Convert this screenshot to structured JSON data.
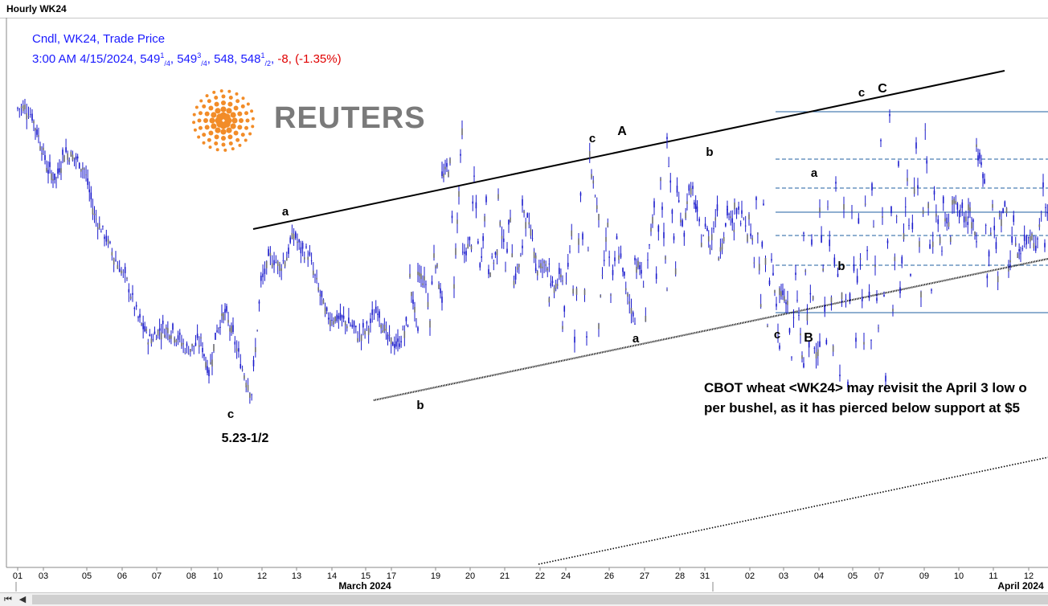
{
  "window": {
    "title": "Hourly WK24"
  },
  "legend": {
    "line1": "Cndl, WK24, Trade Price",
    "timestamp": "3:00 AM 4/15/2024,",
    "open_int": "549",
    "open_frac_num": "1",
    "open_frac_den": "/4",
    "high_int": "549",
    "high_frac_num": "3",
    "high_frac_den": "/4",
    "low": "548,",
    "close_int": "548",
    "close_frac_num": "1",
    "close_frac_den": "/2",
    "change": "-8,",
    "change_pct": "(-1.35%)"
  },
  "logo": {
    "text": "REUTERS",
    "color": "#f28c28"
  },
  "annotation": {
    "line1": "CBOT wheat <WK24> may revisit the April 3 low o",
    "line2": "per bushel, as it has pierced below support at $5"
  },
  "colors": {
    "candle": "#1a1acc",
    "candle_body": "#6e6e6e",
    "fib": "#1f5fa0",
    "trend": "#000000"
  },
  "chart_data": {
    "type": "candlestick",
    "title": "Hourly WK24",
    "series": [
      {
        "name": "Cndl, WK24, Trade Price",
        "approx_close_path": [
          [
            "02-01",
            560.5
          ],
          [
            "02-01",
            560.75
          ],
          [
            "02-02",
            559.5
          ],
          [
            "02-02",
            556.25
          ],
          [
            "02-02",
            552.5
          ],
          [
            "02-02",
            551.5
          ],
          [
            "02-05",
            555.0
          ],
          [
            "02-05",
            554.25
          ],
          [
            "02-05",
            552.75
          ],
          [
            "02-05",
            546.75
          ],
          [
            "02-06",
            544.25
          ],
          [
            "02-06",
            541.0
          ],
          [
            "02-06",
            538.25
          ],
          [
            "02-07",
            533.5
          ],
          [
            "02-07",
            530.75
          ],
          [
            "02-07",
            532.25
          ],
          [
            "02-08",
            532.0
          ],
          [
            "02-08",
            529.5
          ],
          [
            "02-09",
            530.5
          ],
          [
            "02-09",
            526.5
          ],
          [
            "02-09",
            532.25
          ],
          [
            "02-09",
            534.25
          ],
          [
            "02-12",
            531.25
          ],
          [
            "02-12",
            527.0
          ],
          [
            "02-12",
            524.0
          ],
          [
            "02-12",
            538.0
          ],
          [
            "02-12",
            541.5
          ],
          [
            "02-13",
            540.25
          ],
          [
            "02-13",
            541.5
          ],
          [
            "02-13",
            544.5
          ],
          [
            "02-13",
            542.25
          ],
          [
            "02-13",
            542.0
          ],
          [
            "02-14",
            538.75
          ],
          [
            "02-14",
            533.75
          ],
          [
            "02-14",
            533.5
          ],
          [
            "02-15",
            532.75
          ],
          [
            "02-15",
            531.25
          ],
          [
            "02-15",
            532.5
          ],
          [
            "02-16",
            534.75
          ],
          [
            "02-16",
            530.75
          ],
          [
            "02-16",
            530.0
          ],
          [
            "02-16",
            533.0
          ],
          [
            "02-20",
            531.25
          ],
          [
            "02-20",
            533.25
          ],
          [
            "02-20",
            536.0
          ],
          [
            "02-21",
            538.5
          ],
          [
            "02-21",
            541.5
          ],
          [
            "02-21",
            543.5
          ],
          [
            "02-21",
            539.75
          ],
          [
            "02-22",
            539.75
          ],
          [
            "02-22",
            542.0
          ],
          [
            "02-22",
            540.5
          ],
          [
            "02-22",
            538.25
          ],
          [
            "02-23",
            542.0
          ],
          [
            "02-23",
            542.0
          ],
          [
            "02-23",
            540.75
          ],
          [
            "02-26",
            539.0
          ],
          [
            "02-26",
            544.75
          ],
          [
            "02-26",
            550.0
          ],
          [
            "02-26",
            554.25
          ],
          [
            "02-27",
            546.25
          ],
          [
            "02-27",
            546.0
          ],
          [
            "02-27",
            543.25
          ],
          [
            "02-27",
            537.0
          ],
          [
            "02-28",
            533.5
          ],
          [
            "02-28",
            534.5
          ],
          [
            "02-28",
            538.0
          ],
          [
            "02-29",
            537.75
          ],
          [
            "02-29",
            540.25
          ],
          [
            "02-29",
            544.5
          ],
          [
            "03-01",
            549.75
          ],
          [
            "03-01",
            544.0
          ],
          [
            "03-01",
            542.75
          ],
          [
            "03-01",
            541.75
          ],
          [
            "03-04",
            546.75
          ],
          [
            "03-04",
            544.5
          ],
          [
            "03-04",
            546.5
          ],
          [
            "03-04",
            545.0
          ],
          [
            "03-04",
            541.5
          ],
          [
            "03-04",
            535.75
          ],
          [
            "03-05",
            532.75
          ],
          [
            "03-05",
            529.25
          ],
          [
            "03-05",
            528.0
          ],
          [
            "03-06",
            526.5
          ],
          [
            "03-06",
            529.25
          ],
          [
            "03-06",
            529.75
          ],
          [
            "03-07",
            530.25
          ],
          [
            "03-07",
            531.0
          ],
          [
            "03-07",
            530.0
          ],
          [
            "03-08",
            526.5
          ],
          [
            "03-08",
            524.5
          ],
          [
            "03-08",
            531.0
          ],
          [
            "03-11",
            530.75
          ],
          [
            "03-11",
            531.0
          ],
          [
            "03-11",
            532.0
          ],
          [
            "03-11",
            526.0
          ],
          [
            "03-11",
            534.75
          ],
          [
            "03-12",
            536.75
          ],
          [
            "03-12",
            539.0
          ],
          [
            "03-12",
            537.75
          ],
          [
            "03-12",
            537.25
          ],
          [
            "03-13",
            541.5
          ],
          [
            "03-13",
            544.25
          ],
          [
            "03-13",
            546.5
          ],
          [
            "03-13",
            545.5
          ],
          [
            "03-14",
            543.75
          ],
          [
            "03-14",
            539.25
          ],
          [
            "03-14",
            539.5
          ],
          [
            "03-15",
            540.0
          ],
          [
            "03-15",
            542.0
          ],
          [
            "03-15",
            543.75
          ],
          [
            "03-15",
            543.0
          ],
          [
            "03-18",
            542.75
          ],
          [
            "03-18",
            540.25
          ],
          [
            "03-18",
            541.25
          ],
          [
            "03-19",
            538.75
          ],
          [
            "03-19",
            539.5
          ],
          [
            "03-19",
            538.0
          ],
          [
            "03-19",
            542.25
          ],
          [
            "03-19",
            551.5
          ],
          [
            "03-20",
            553.5
          ],
          [
            "03-20",
            557.5
          ],
          [
            "03-20",
            551.5
          ],
          [
            "03-21",
            548.75
          ],
          [
            "03-21",
            548.75
          ],
          [
            "03-21",
            547.0
          ],
          [
            "03-22",
            548.25
          ],
          [
            "03-22",
            539.75
          ],
          [
            "03-22",
            536.75
          ],
          [
            "03-25",
            532.5
          ],
          [
            "03-25",
            531.0
          ],
          [
            "03-25",
            530.5
          ],
          [
            "03-26",
            533.25
          ],
          [
            "03-26",
            536.0
          ],
          [
            "03-26",
            540.0
          ],
          [
            "03-27",
            541.0
          ],
          [
            "03-27",
            539.5
          ],
          [
            "03-27",
            541.25
          ],
          [
            "03-27",
            547.5
          ],
          [
            "03-27",
            551.0
          ],
          [
            "03-28",
            557.0
          ],
          [
            "03-28",
            549.5
          ],
          [
            "03-28",
            549.25
          ],
          [
            "03-28",
            546.5
          ],
          [
            "03-28",
            545.25
          ],
          [
            "03-28",
            548.0
          ],
          [
            "04-01",
            547.75
          ],
          [
            "04-01",
            548.0
          ],
          [
            "04-01",
            547.75
          ],
          [
            "04-01",
            546.5
          ],
          [
            "04-01",
            549.25
          ],
          [
            "04-02",
            548.25
          ],
          [
            "04-02",
            541.75
          ],
          [
            "04-02",
            537.25
          ],
          [
            "04-03",
            535.75
          ],
          [
            "04-03",
            538.5
          ],
          [
            "04-03",
            544.5
          ],
          [
            "04-03",
            543.0
          ],
          [
            "04-04",
            547.5
          ],
          [
            "04-04",
            548.5
          ],
          [
            "04-04",
            550.5
          ],
          [
            "04-04",
            548.25
          ],
          [
            "04-05",
            547.75
          ],
          [
            "04-05",
            546.5
          ],
          [
            "04-05",
            547.5
          ],
          [
            "04-08",
            549.75
          ],
          [
            "04-08",
            556.75
          ],
          [
            "04-08",
            559.25
          ],
          [
            "04-08",
            553.5
          ],
          [
            "04-08",
            551.5
          ],
          [
            "04-09",
            556.0
          ],
          [
            "04-09",
            558.0
          ],
          [
            "04-09",
            549.5
          ],
          [
            "04-09",
            547.75
          ],
          [
            "04-10",
            549.5
          ],
          [
            "04-10",
            547.5
          ],
          [
            "04-10",
            548.5
          ],
          [
            "04-10",
            555.25
          ],
          [
            "04-10",
            551.5
          ],
          [
            "04-11",
            547.5
          ],
          [
            "04-11",
            546.5
          ],
          [
            "04-11",
            547.75
          ],
          [
            "04-11",
            545.25
          ],
          [
            "04-12",
            542.5
          ],
          [
            "04-12",
            543.5
          ],
          [
            "04-12",
            544.75
          ],
          [
            "04-12",
            543.25
          ],
          [
            "04-15",
            550.0
          ],
          [
            "04-15",
            548.5
          ]
        ]
      }
    ],
    "last_bar": {
      "time": "3:00 AM 4/15/2024",
      "open": 549.25,
      "high": 549.75,
      "low": 548,
      "close": 548.5,
      "change": -8,
      "change_pct": -1.35
    },
    "price_labels": [
      "5.23-1/2"
    ],
    "wave_labels": [
      {
        "text": "c",
        "date": "02-12"
      },
      {
        "text": "5.23-1/2",
        "date": "02-12"
      },
      {
        "text": "a",
        "date": "02-14"
      },
      {
        "text": "b",
        "date": "02-19"
      },
      {
        "text": "c",
        "date": "02-26"
      },
      {
        "text": "A",
        "date": "02-26"
      },
      {
        "text": "a",
        "date": "02-29"
      },
      {
        "text": "b",
        "date": "03-03"
      },
      {
        "text": "c",
        "date": "03-05"
      },
      {
        "text": "B",
        "date": "03-05"
      },
      {
        "text": "a",
        "date": "03-07"
      },
      {
        "text": "b",
        "date": "03-08"
      },
      {
        "text": "c",
        "date": "03-09"
      },
      {
        "text": "C",
        "date": "03-09"
      }
    ],
    "x_tick_labels": [
      "01",
      "03",
      "05",
      "06",
      "07",
      "08",
      "10",
      "12",
      "13",
      "14",
      "15",
      "17",
      "19",
      "20",
      "21",
      "22",
      "24",
      "26",
      "27",
      "28",
      "31",
      "02",
      "03",
      "04",
      "05",
      "07",
      "09",
      "10",
      "11",
      "12"
    ],
    "x_month_labels": [
      "March 2024",
      "April 2024"
    ],
    "fib_levels_count": 7,
    "grid": false,
    "legend_position": "top-left"
  }
}
